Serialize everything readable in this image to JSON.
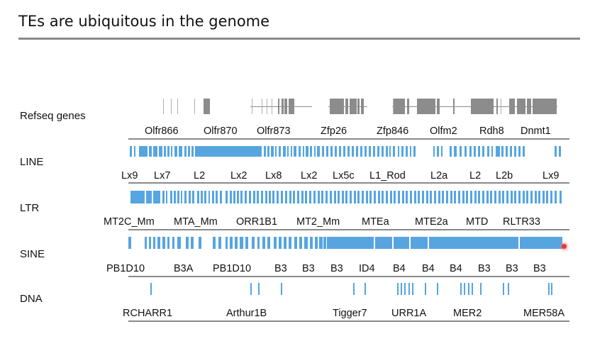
{
  "slide": {
    "title": "TEs are ubiquitous in the genome"
  },
  "tracks": {
    "refseq": {
      "label": "Refseq genes",
      "names": [
        "Olfr866",
        "Olfr870",
        "Olfr873",
        "Zfp26",
        "Zfp846",
        "Olfm2",
        "Rdh8",
        "Dnmt1"
      ]
    },
    "line": {
      "label": "LINE",
      "names": [
        "Lx9",
        "Lx7",
        "L2",
        "Lx2",
        "Lx8",
        "Lx2",
        "Lx5c",
        "L1_Rod",
        "L2a",
        "L2",
        "L2b",
        "Lx9"
      ]
    },
    "ltr": {
      "label": "LTR",
      "names": [
        "MT2C_Mm",
        "MTA_Mm",
        "ORR1B1",
        "MT2_Mm",
        "MTEa",
        "MTE2a",
        "MTD",
        "RLTR33"
      ]
    },
    "sine": {
      "label": "SINE",
      "names": [
        "PB1D10",
        "B3A",
        "PB1D10",
        "B3",
        "B3",
        "B3",
        "ID4",
        "B4",
        "B4",
        "B4",
        "B3",
        "B3",
        "B3"
      ]
    },
    "dna": {
      "label": "DNA",
      "names": [
        "RCHARR1",
        "Arthur1B",
        "Tigger7",
        "URR1A",
        "MER2",
        "MER58A"
      ]
    }
  },
  "colors": {
    "feature": "#56a5e0",
    "gene": "#8c8c8c",
    "rule": "#8a8a8a"
  }
}
